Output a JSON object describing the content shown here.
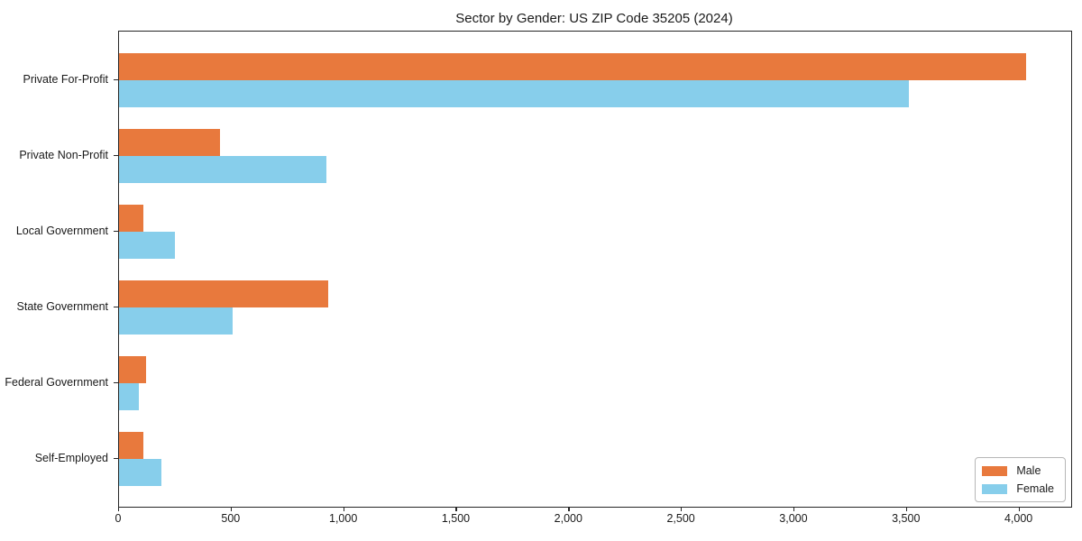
{
  "chart_data": {
    "type": "bar",
    "orientation": "horizontal",
    "title": "Sector by Gender: US ZIP Code 35205 (2024)",
    "categories": [
      "Private For-Profit",
      "Private Non-Profit",
      "Local Government",
      "State Government",
      "Federal Government",
      "Self-Employed"
    ],
    "series": [
      {
        "name": "Male",
        "color": "#e8793d",
        "values": [
          4030,
          450,
          110,
          930,
          120,
          110
        ]
      },
      {
        "name": "Female",
        "color": "#87ceeb",
        "values": [
          3510,
          920,
          250,
          505,
          90,
          190
        ]
      }
    ],
    "xlim": [
      0,
      4230
    ],
    "x_ticks": [
      0,
      500,
      1000,
      1500,
      2000,
      2500,
      3000,
      3500,
      4000
    ],
    "x_tick_labels": [
      "0",
      "500",
      "1,000",
      "1,500",
      "2,000",
      "2,500",
      "3,000",
      "3,500",
      "4,000"
    ],
    "legend": {
      "position": "lower right",
      "entries": [
        "Male",
        "Female"
      ]
    },
    "grid": false,
    "background_color": "#ffffff",
    "axis_color": "#262626",
    "text_color": "#1a1a1a"
  }
}
